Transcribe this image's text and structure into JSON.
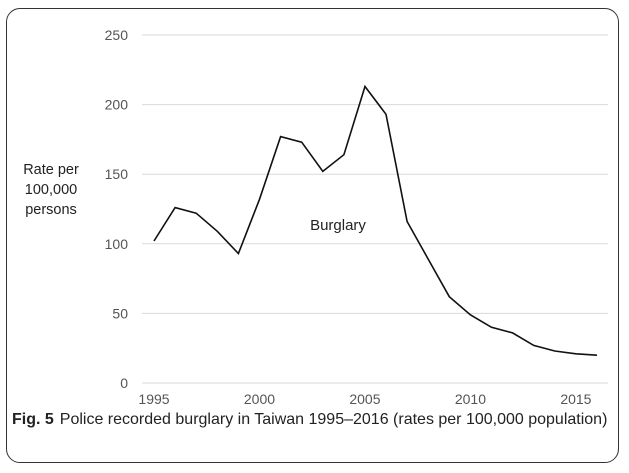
{
  "caption": {
    "label": "Fig. 5",
    "text": "Police recorded burglary in Taiwan 1995–2016 (rates per 100,000 population)"
  },
  "chart_data": {
    "type": "line",
    "title": "",
    "xlabel": "",
    "ylabel": [
      "Rate per",
      "100,000",
      "persons"
    ],
    "xlim": [
      1995,
      2016
    ],
    "ylim": [
      0,
      250
    ],
    "x_ticks": [
      1995,
      2000,
      2005,
      2010,
      2015
    ],
    "y_ticks": [
      0,
      50,
      100,
      150,
      200,
      250
    ],
    "grid": "horizontal",
    "annotation": "Burglary",
    "series": [
      {
        "x": [
          1995,
          1996,
          1997,
          1998,
          1999,
          2000,
          2001,
          2002,
          2003,
          2004,
          2005,
          2006,
          2007,
          2008,
          2009,
          2010,
          2011,
          2012,
          2013,
          2014,
          2015,
          2016
        ],
        "values": [
          102,
          126,
          122,
          109,
          93,
          132,
          177,
          173,
          152,
          164,
          213,
          193,
          116,
          89,
          62,
          49,
          40,
          36,
          27,
          23,
          21,
          20
        ],
        "color": "#111111"
      }
    ]
  }
}
